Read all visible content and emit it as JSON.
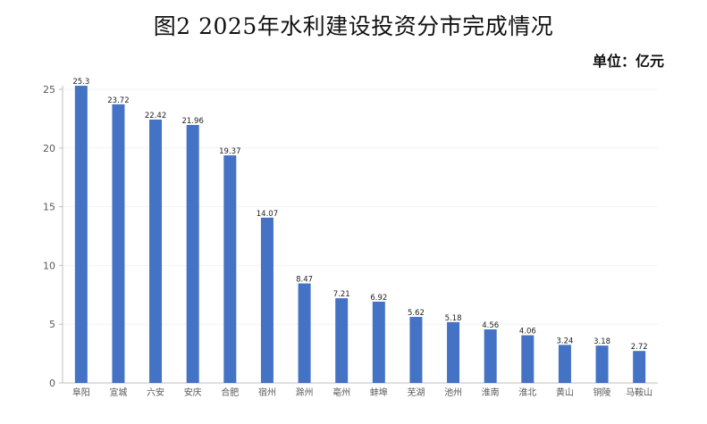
{
  "chart_data": {
    "type": "bar",
    "title": "图2  2025年水利建设投资分市完成情况",
    "unit_label": "单位：亿元",
    "categories": [
      "阜阳",
      "宣城",
      "六安",
      "安庆",
      "合肥",
      "宿州",
      "滁州",
      "亳州",
      "蚌埠",
      "芜湖",
      "池州",
      "淮南",
      "淮北",
      "黄山",
      "铜陵",
      "马鞍山"
    ],
    "values": [
      25.3,
      23.72,
      22.42,
      21.96,
      19.37,
      14.07,
      8.47,
      7.21,
      6.92,
      5.62,
      5.18,
      4.56,
      4.06,
      3.24,
      3.18,
      2.72
    ],
    "data_labels": [
      "25.3",
      "23.72",
      "22.42",
      "21.96",
      "19.37",
      "14.07",
      "8.47",
      "7.21",
      "6.92",
      "5.62",
      "5.18",
      "4.56",
      "4.06",
      "3.24",
      "3.18",
      "2.72"
    ],
    "ylim": [
      0,
      25
    ],
    "yticks": [
      "0",
      "5",
      "10",
      "15",
      "20",
      "25"
    ],
    "bar_color": "#4472C4",
    "grid": true
  }
}
